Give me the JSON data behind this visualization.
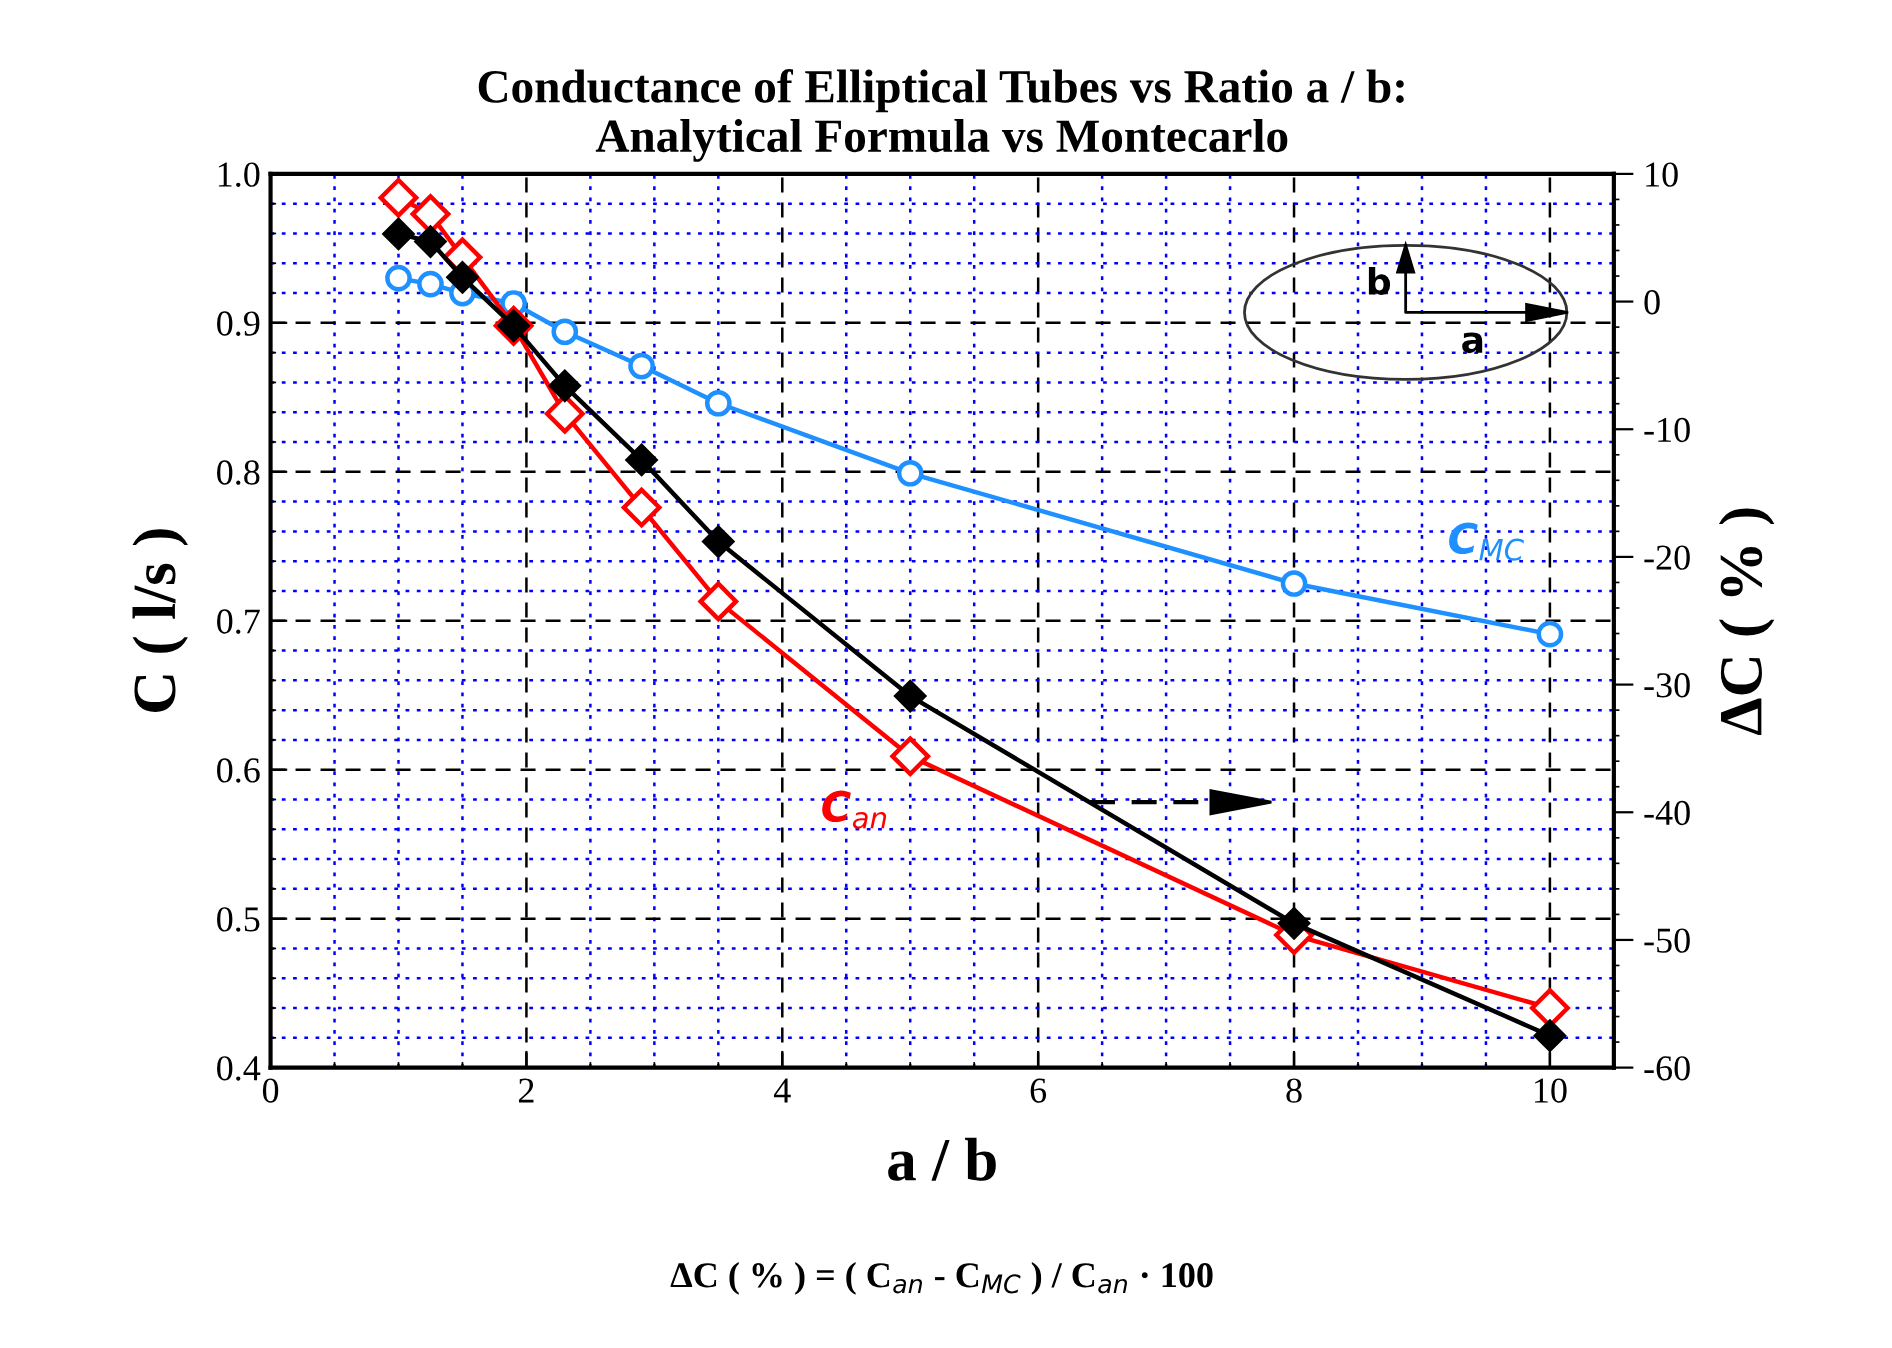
{
  "chart_data": {
    "type": "line",
    "title": "Conductance of Elliptical Tubes vs Ratio a / b:\nAnalytical Formula vs Montecarlo",
    "xlabel": "a / b",
    "ylabel": "C ( l/s )",
    "y2label": "ΔC ( % )",
    "x": [
      1,
      1.25,
      1.5,
      1.9,
      2.3,
      2.9,
      3.5,
      5,
      8,
      10
    ],
    "series": [
      {
        "name": "C$_{MC}$",
        "color": "#1e90ff",
        "marker": "circle",
        "values": [
          0.93,
          0.926,
          0.92,
          0.913,
          0.894,
          0.871,
          0.846,
          0.799,
          0.725,
          0.691
        ]
      },
      {
        "name": "C$_{an}$",
        "color": "#ff0000",
        "marker": "diamond",
        "values": [
          0.984,
          0.973,
          0.944,
          0.898,
          0.839,
          0.776,
          0.713,
          0.609,
          0.489,
          0.44
        ]
      },
      {
        "color": "#000000",
        "marker": "diamond",
        "axis": "y2",
        "values": [
          5.3,
          4.7,
          1.9,
          -1.9,
          -6.6,
          -12.4,
          -18.8,
          -30.9,
          -48.7,
          -57.5
        ]
      }
    ],
    "xlim": [
      0,
      10.5
    ],
    "xticks": [
      0,
      {
        "value": 0.5,
        "label": null
      },
      {
        "value": 1,
        "label": null
      },
      {
        "value": 1.5,
        "label": null
      },
      2,
      {
        "value": 2.5,
        "label": null
      },
      {
        "value": 3,
        "label": null
      },
      {
        "value": 3.5,
        "label": null
      },
      4,
      {
        "value": 4.5,
        "label": null
      },
      {
        "value": 5,
        "label": null
      },
      {
        "value": 5.5,
        "label": null
      },
      6,
      {
        "value": 6.5,
        "label": null
      },
      {
        "value": 7,
        "label": null
      },
      {
        "value": 7.5,
        "label": null
      },
      8,
      {
        "value": 8.5,
        "label": null
      },
      {
        "value": 9,
        "label": null
      },
      {
        "value": 9.5,
        "label": null
      },
      10
    ],
    "ylim": [
      0.4,
      1.0
    ],
    "yticks": [
      0.4,
      {
        "value": 0.42,
        "label": null
      },
      {
        "value": 0.44,
        "label": null
      },
      {
        "value": 0.46,
        "label": null
      },
      {
        "value": 0.48,
        "label": null
      },
      0.5,
      {
        "value": 0.52,
        "label": null
      },
      {
        "value": 0.54,
        "label": null
      },
      {
        "value": 0.56,
        "label": null
      },
      {
        "value": 0.58,
        "label": null
      },
      0.6,
      {
        "value": 0.62,
        "label": null
      },
      {
        "value": 0.64,
        "label": null
      },
      {
        "value": 0.66,
        "label": null
      },
      {
        "value": 0.68,
        "label": null
      },
      0.7,
      {
        "value": 0.72,
        "label": null
      },
      {
        "value": 0.74,
        "label": null
      },
      {
        "value": 0.76,
        "label": null
      },
      {
        "value": 0.78,
        "label": null
      },
      0.8,
      {
        "value": 0.82,
        "label": null
      },
      {
        "value": 0.84,
        "label": null
      },
      {
        "value": 0.86,
        "label": null
      },
      {
        "value": 0.88,
        "label": null
      },
      0.9,
      {
        "value": 0.92,
        "label": null
      },
      {
        "value": 0.94,
        "label": null
      },
      {
        "value": 0.96,
        "label": null
      },
      {
        "value": 0.98,
        "label": null
      },
      {
        "value": 1.0,
        "label": "1.0"
      }
    ],
    "y2lim": [
      -60,
      10
    ],
    "y2ticks": [
      -60,
      {
        "value": -58,
        "label": null
      },
      {
        "value": -56,
        "label": null
      },
      {
        "value": -54,
        "label": null
      },
      {
        "value": -52,
        "label": null
      },
      -50,
      {
        "value": -48,
        "label": null
      },
      {
        "value": -46,
        "label": null
      },
      {
        "value": -44,
        "label": null
      },
      {
        "value": -42,
        "label": null
      },
      -40,
      {
        "value": -38,
        "label": null
      },
      {
        "value": -36,
        "label": null
      },
      {
        "value": -34,
        "label": null
      },
      {
        "value": -32,
        "label": null
      },
      -30,
      {
        "value": -28,
        "label": null
      },
      {
        "value": -26,
        "label": null
      },
      {
        "value": -24,
        "label": null
      },
      {
        "value": -22,
        "label": null
      },
      -20,
      {
        "value": -18,
        "label": null
      },
      {
        "value": -16,
        "label": null
      },
      {
        "value": -14,
        "label": null
      },
      {
        "value": -12,
        "label": null
      },
      -10,
      {
        "value": -8,
        "label": null
      },
      {
        "value": -6,
        "label": null
      },
      {
        "value": -4,
        "label": null
      },
      {
        "value": -2,
        "label": null
      },
      0,
      {
        "value": 2,
        "label": null
      },
      {
        "value": 4,
        "label": null
      },
      {
        "value": 6,
        "label": null
      },
      {
        "value": 8,
        "label": null
      },
      10
    ],
    "grid": true,
    "legend": false,
    "line_style": "solid",
    "annotations": [
      "ΔC ( % ) = ( C$_{an}$ - C$_{MC}$ ) / C$_{an}$ · 100",
      "a",
      "b"
    ]
  }
}
